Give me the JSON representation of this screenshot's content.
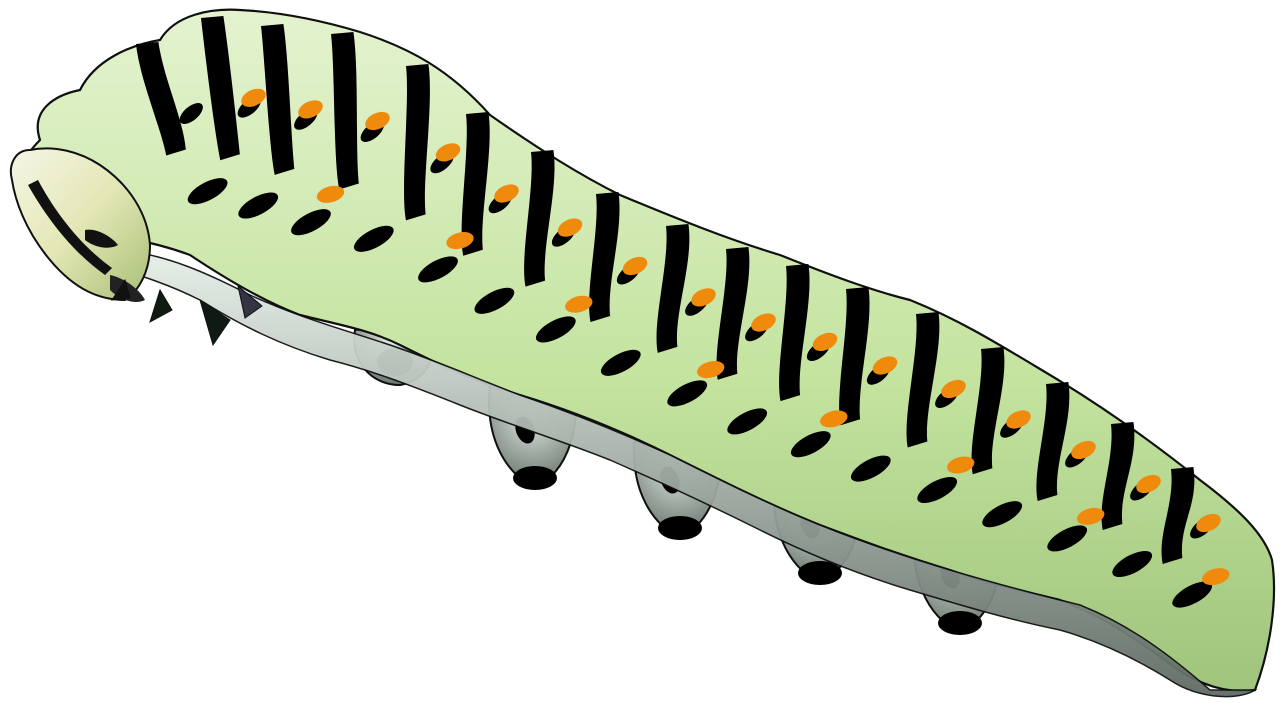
{
  "scene": {
    "subject_icon": "caterpillar-icon",
    "colors": {
      "background": "#ffffff",
      "body_light": "#e4f3cf",
      "body_mid": "#c3e39e",
      "body_shadow": "#9fc47c",
      "belly_light": "#e6efe8",
      "belly_dark": "#5f6b63",
      "stripe": "#000000",
      "spot": "#f08a0c",
      "outline": "#101010"
    }
  }
}
